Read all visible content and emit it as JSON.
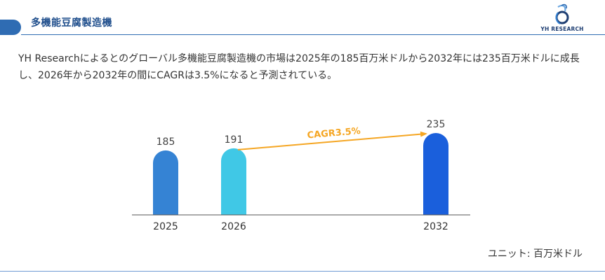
{
  "header": {
    "title": "多機能豆腐製造機",
    "logo_text": "YH RESEARCH"
  },
  "description": "YH Researchによるとのグローバル多機能豆腐製造機の市場は2025年の185百万米ドルから2032年には235百万米ドルに成長し、2026年から2032年の間にCAGRは3.5%になると予測されている。",
  "unit_label": "ユニット: 百万米ドル",
  "colors": {
    "header_blue": "#2f6cb3",
    "bar_2025": "#3583d4",
    "bar_2026": "#40c8e6",
    "bar_2032": "#1a5fdc",
    "cagr": "#f5a623"
  },
  "chart_data": {
    "type": "bar",
    "categories": [
      "2025",
      "2026",
      "2032"
    ],
    "values": [
      185,
      191,
      235
    ],
    "value_labels": [
      "185",
      "191",
      "235"
    ],
    "annotation": {
      "text": "CAGR3.5%",
      "from": "2026",
      "to": "2032"
    },
    "title": "",
    "xlabel": "",
    "ylabel": "",
    "grid": false
  }
}
